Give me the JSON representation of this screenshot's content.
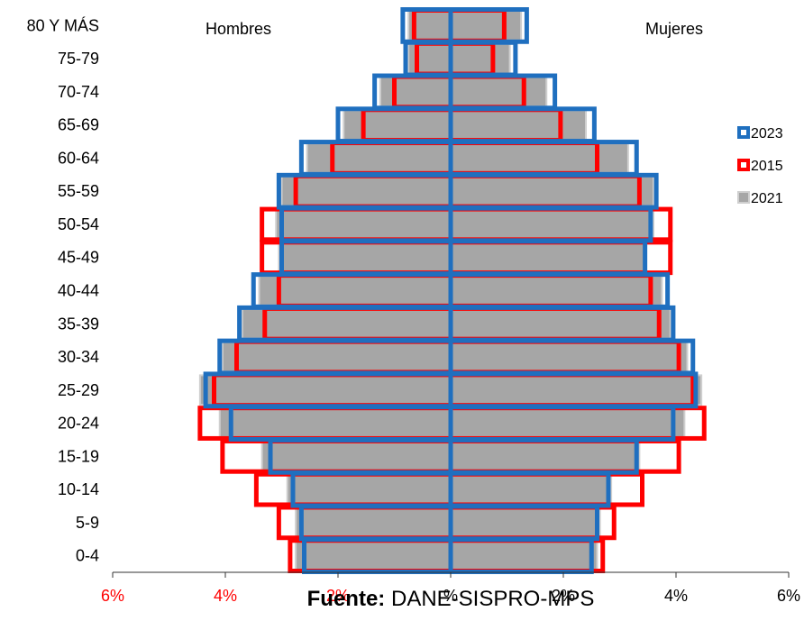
{
  "chart_data": {
    "type": "bar",
    "orientation": "population-pyramid",
    "left_group_label": "Hombres",
    "right_group_label": "Mujeres",
    "categories": [
      "0-4",
      "5-9",
      "10-14",
      "15-19",
      "20-24",
      "25-29",
      "30-34",
      "35-39",
      "40-44",
      "45-49",
      "50-54",
      "55-59",
      "60-64",
      "65-69",
      "70-74",
      "75-79",
      "80 Y MÁS"
    ],
    "x_ticks": [
      "6%",
      "4%",
      "2%",
      "%",
      "2%",
      "4%",
      "6%"
    ],
    "xlim": [
      -6,
      6
    ],
    "legend_position": "right",
    "series": [
      {
        "name": "2023",
        "color": "#1F6FBF",
        "style": "outline",
        "hombres": [
          2.6,
          2.65,
          2.8,
          3.2,
          3.9,
          4.35,
          4.1,
          3.75,
          3.5,
          3.0,
          3.0,
          3.05,
          2.65,
          2.0,
          1.35,
          0.8,
          0.85
        ],
        "mujeres": [
          2.5,
          2.6,
          2.8,
          3.3,
          3.95,
          4.35,
          4.3,
          3.95,
          3.85,
          3.45,
          3.55,
          3.65,
          3.3,
          2.55,
          1.85,
          1.15,
          1.35
        ]
      },
      {
        "name": "2015",
        "color": "#FF0000",
        "style": "outline",
        "hombres": [
          2.85,
          3.05,
          3.45,
          4.05,
          4.45,
          4.2,
          3.8,
          3.3,
          3.05,
          3.35,
          3.35,
          2.75,
          2.1,
          1.55,
          1.0,
          0.6,
          0.65
        ],
        "mujeres": [
          2.7,
          2.9,
          3.4,
          4.05,
          4.5,
          4.3,
          4.05,
          3.7,
          3.55,
          3.9,
          3.9,
          3.35,
          2.6,
          1.95,
          1.3,
          0.75,
          0.95
        ]
      },
      {
        "name": "2021",
        "color": "#A6A6A6",
        "style": "filled",
        "hombres": [
          2.75,
          2.75,
          2.9,
          3.35,
          4.1,
          4.45,
          4.05,
          3.7,
          3.4,
          3.05,
          3.1,
          3.0,
          2.55,
          1.9,
          1.25,
          0.75,
          0.75
        ],
        "mujeres": [
          2.6,
          2.65,
          2.85,
          3.35,
          4.15,
          4.45,
          4.2,
          3.9,
          3.75,
          3.45,
          3.6,
          3.6,
          3.15,
          2.4,
          1.7,
          1.05,
          1.25
        ]
      }
    ]
  },
  "source": {
    "label": "Fuente:",
    "text": " DANE-SISPRO-MPS"
  }
}
